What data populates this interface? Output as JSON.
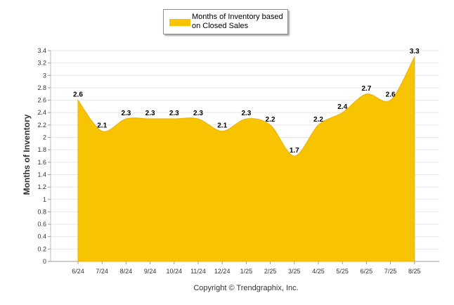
{
  "chart_data": {
    "type": "area",
    "categories": [
      "6/24",
      "7/24",
      "8/24",
      "9/24",
      "10/24",
      "11/24",
      "12/24",
      "1/25",
      "2/25",
      "3/25",
      "4/25",
      "5/25",
      "6/25",
      "7/25",
      "8/25"
    ],
    "series": [
      {
        "name": "Months of Inventory based on Closed Sales",
        "values": [
          2.6,
          2.1,
          2.3,
          2.3,
          2.3,
          2.3,
          2.1,
          2.3,
          2.2,
          1.7,
          2.2,
          2.4,
          2.7,
          2.6,
          3.3
        ]
      }
    ],
    "data_labels": [
      "2.6",
      "2.1",
      "2.3",
      "2.3",
      "2.3",
      "2.3",
      "2.1",
      "2.3",
      "2.2",
      "1.7",
      "2.2",
      "2.4",
      "2.7",
      "2.6",
      "3.3"
    ],
    "ylabel": "Months of Inventory",
    "ylim": [
      0,
      3.4
    ],
    "yticks": [
      "0",
      "0.2",
      "0.4",
      "0.6",
      "0.8",
      "1",
      "1.2",
      "1.4",
      "1.6",
      "1.8",
      "2",
      "2.2",
      "2.4",
      "2.6",
      "2.8",
      "3",
      "3.2",
      "3.4"
    ],
    "grid": true,
    "legend_position": "top-center",
    "color": "#f8c300",
    "footer": "Copyright © Trendgraphix, Inc."
  }
}
